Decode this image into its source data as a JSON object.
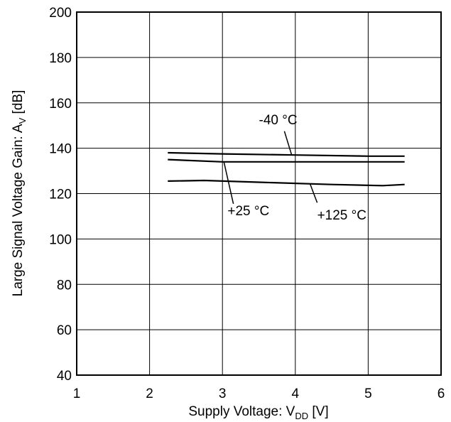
{
  "chart_data": {
    "type": "line",
    "title": "",
    "xlabel": {
      "main": "Supply Voltage: V",
      "sub": "DD",
      "unit": " [V]"
    },
    "ylabel": {
      "main": "Large Signal Voltage Gain: A",
      "sub": "V",
      "unit": " [dB]"
    },
    "xlim": [
      1,
      6
    ],
    "ylim": [
      40,
      200
    ],
    "xticks": [
      1,
      2,
      3,
      4,
      5,
      6
    ],
    "yticks": [
      40,
      60,
      80,
      100,
      120,
      140,
      160,
      180,
      200
    ],
    "grid": true,
    "series": [
      {
        "name": "-40 °C",
        "x": [
          2.25,
          3,
          4,
          5,
          5.5
        ],
        "y": [
          138,
          137.5,
          137,
          136.5,
          136.5
        ],
        "label": {
          "text": "-40 °C",
          "text_x": 3.5,
          "text_y": 150.5,
          "leader": [
            [
              3.85,
              147.5
            ],
            [
              3.95,
              137
            ]
          ]
        }
      },
      {
        "name": "+25 °C",
        "x": [
          2.25,
          3,
          4,
          5,
          5.5
        ],
        "y": [
          135,
          134,
          134,
          134,
          134
        ],
        "label": {
          "text": "+25 °C",
          "text_x": 3.07,
          "text_y": 110.5,
          "leader": [
            [
              3.15,
              115.5
            ],
            [
              3.02,
              134
            ]
          ]
        }
      },
      {
        "name": "+125 °C",
        "x": [
          2.25,
          2.75,
          3.5,
          4.5,
          5.2,
          5.5
        ],
        "y": [
          125.5,
          125.8,
          125,
          124,
          123.5,
          124
        ],
        "label": {
          "text": "+125 °C",
          "text_x": 4.3,
          "text_y": 108.5,
          "leader": [
            [
              4.3,
              116
            ],
            [
              4.2,
              124.5
            ]
          ]
        }
      }
    ]
  }
}
